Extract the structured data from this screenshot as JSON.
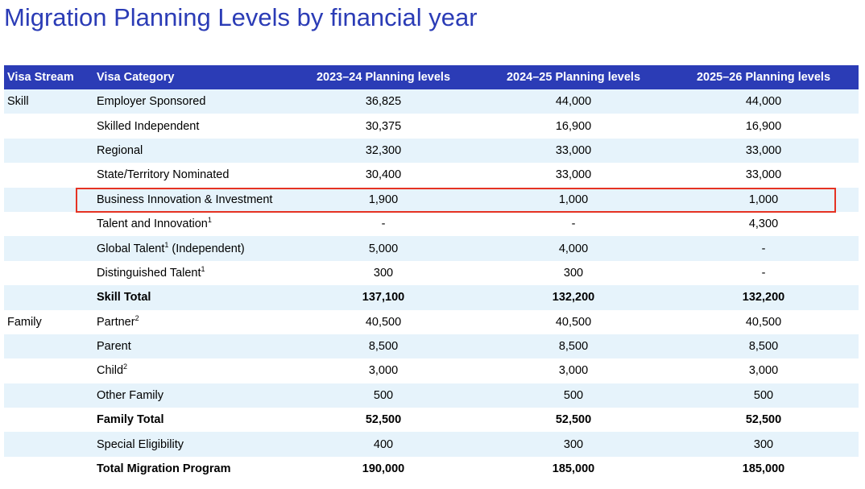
{
  "title": "Migration Planning Levels by financial year",
  "table": {
    "header": [
      "Visa Stream",
      "Visa Category",
      "2023–24 Planning levels",
      "2024–25 Planning levels",
      "2025–26 Planning levels"
    ],
    "rows": [
      {
        "stream": "Skill",
        "category": "Employer Sponsored",
        "values": [
          "36,825",
          "44,000",
          "44,000"
        ]
      },
      {
        "category": "Skilled Independent",
        "values": [
          "30,375",
          "16,900",
          "16,900"
        ]
      },
      {
        "category": "Regional",
        "values": [
          "32,300",
          "33,000",
          "33,000"
        ]
      },
      {
        "category": "State/Territory Nominated",
        "values": [
          "30,400",
          "33,000",
          "33,000"
        ]
      },
      {
        "category": "Business Innovation & Investment",
        "values": [
          "1,900",
          "1,000",
          "1,000"
        ]
      },
      {
        "category": "Talent and Innovation",
        "note": "1",
        "values": [
          "-",
          "-",
          "4,300"
        ]
      },
      {
        "category": "Global Talent",
        "note": "1",
        "suffix": "(Independent)",
        "values": [
          "5,000",
          "4,000",
          "-"
        ]
      },
      {
        "category": "Distinguished Talent",
        "note": "1",
        "values": [
          "300",
          "300",
          "-"
        ]
      },
      {
        "category": "Skill Total",
        "values": [
          "137,100",
          "132,200",
          "132,200"
        ]
      },
      {
        "stream": "Family",
        "category": "Partner",
        "note": "2",
        "values": [
          "40,500",
          "40,500",
          "40,500"
        ]
      },
      {
        "category": "Parent",
        "values": [
          "8,500",
          "8,500",
          "8,500"
        ]
      },
      {
        "category": "Child",
        "note": "2",
        "values": [
          "3,000",
          "3,000",
          "3,000"
        ]
      },
      {
        "category": "Other Family",
        "values": [
          "500",
          "500",
          "500"
        ]
      },
      {
        "category": "Family Total",
        "values": [
          "52,500",
          "52,500",
          "52,500"
        ]
      },
      {
        "category": "Special Eligibility",
        "values": [
          "400",
          "300",
          "300"
        ]
      },
      {
        "category": "Total Migration Program",
        "values": [
          "190,000",
          "185,000",
          "185,000"
        ]
      }
    ]
  }
}
